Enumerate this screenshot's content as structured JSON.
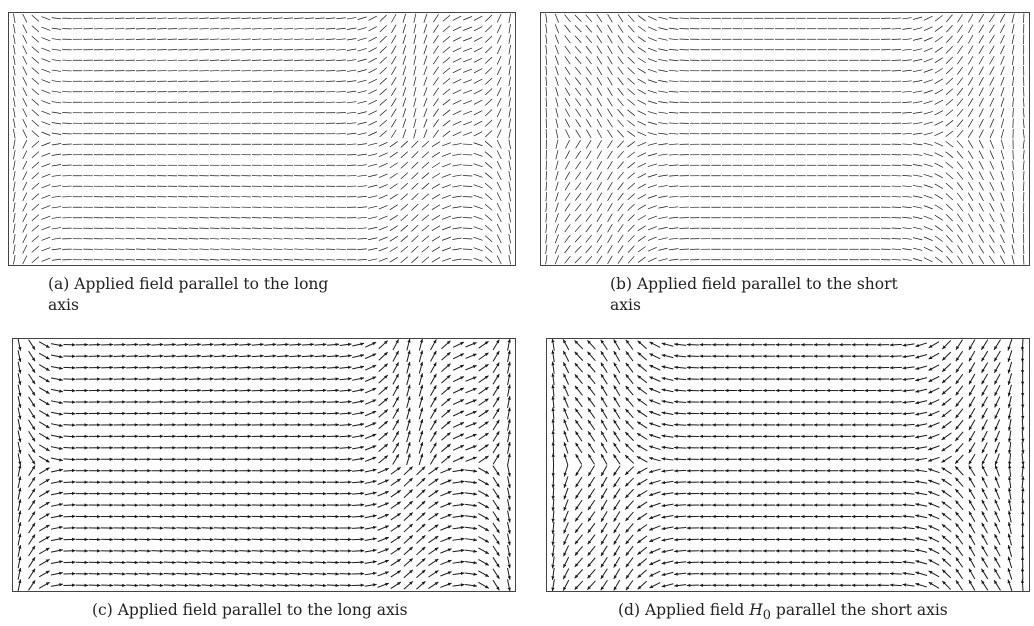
{
  "panels": [
    {
      "id": "a",
      "caption_line1": "(a) Applied field parallel to the long",
      "caption_line2": "axis",
      "pattern": "long-axis-sparse"
    },
    {
      "id": "b",
      "caption_line1": "(b) Applied field parallel to the short",
      "caption_line2": "axis",
      "pattern": "short-axis-sparse"
    },
    {
      "id": "c",
      "caption_line1": "(c) Applied field parallel to the long axis",
      "pattern": "long-axis-dense"
    },
    {
      "id": "d",
      "caption_prefix": "(d) Applied field ",
      "caption_symbol": "H",
      "caption_subscript": "0",
      "caption_suffix": " parallel the short axis",
      "pattern": "short-axis-dense"
    }
  ],
  "colors": {
    "arrow": "#1a1a1a",
    "frame": "#444444"
  }
}
